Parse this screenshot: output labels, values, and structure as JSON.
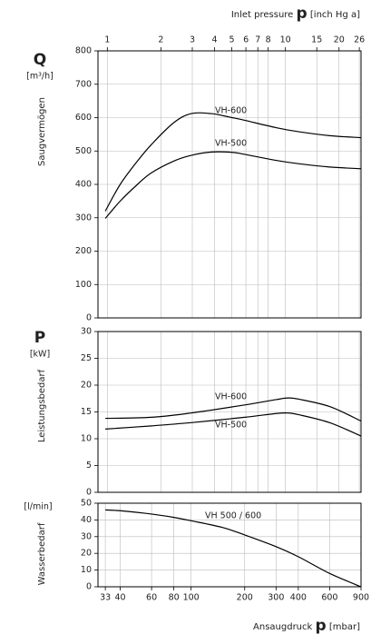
{
  "chart_data": [
    {
      "type": "line",
      "xscale": "log",
      "xlim": [
        30,
        900
      ],
      "x2lim": [
        0.886,
        26.58
      ],
      "x2ticks": [
        1,
        2,
        3,
        4,
        5,
        6,
        7,
        8,
        10,
        15,
        20,
        26
      ],
      "x2label": [
        "Inlet pressure",
        "p",
        "[inch Hg a]"
      ],
      "ylabel": [
        "Q",
        "[m³/h]",
        "Saugvermögen"
      ],
      "ylim": [
        0,
        800
      ],
      "yticks": [
        0,
        100,
        200,
        300,
        400,
        500,
        600,
        700,
        800
      ],
      "grid": true,
      "x": [
        33,
        40,
        50,
        60,
        80,
        100,
        130,
        170,
        200,
        300,
        400,
        600,
        900
      ],
      "series": [
        {
          "name": "VH-600",
          "color": "#000000",
          "values": [
            320,
            400,
            470,
            520,
            585,
            612,
            612,
            600,
            592,
            570,
            558,
            546,
            540
          ]
        },
        {
          "name": "VH-500",
          "color": "#000000",
          "values": [
            298,
            350,
            400,
            435,
            470,
            487,
            497,
            496,
            490,
            472,
            462,
            452,
            447
          ]
        }
      ]
    },
    {
      "type": "line",
      "xscale": "log",
      "xlim": [
        30,
        900
      ],
      "ylabel": [
        "P",
        "[kW]",
        "Leistungsbedarf"
      ],
      "ylim": [
        0,
        30
      ],
      "yticks": [
        0,
        5,
        10,
        15,
        20,
        25,
        30
      ],
      "grid": true,
      "x": [
        33,
        60,
        100,
        200,
        300,
        350,
        400,
        600,
        900
      ],
      "series": [
        {
          "name": "VH-600",
          "color": "#000000",
          "values": [
            13.8,
            14.0,
            14.8,
            16.3,
            17.3,
            17.6,
            17.4,
            16.0,
            13.3
          ]
        },
        {
          "name": "VH-500",
          "color": "#000000",
          "values": [
            11.8,
            12.4,
            13.0,
            14.0,
            14.7,
            14.8,
            14.5,
            13.0,
            10.5
          ]
        }
      ]
    },
    {
      "type": "line",
      "xscale": "log",
      "xlim": [
        30,
        900
      ],
      "xticks": [
        33,
        40,
        60,
        80,
        100,
        200,
        300,
        400,
        600,
        900
      ],
      "xlabel": [
        "Ansaugdruck",
        "p",
        "[mbar]"
      ],
      "ylabel": [
        "[l/min]",
        "Wasserbedarf"
      ],
      "ylim": [
        0,
        50
      ],
      "yticks": [
        0,
        10,
        20,
        30,
        40,
        50
      ],
      "grid": true,
      "x": [
        33,
        40,
        60,
        80,
        100,
        150,
        200,
        300,
        400,
        600,
        900
      ],
      "series": [
        {
          "name": "VH 500 / 600",
          "color": "#000000",
          "values": [
            46,
            45.5,
            43.5,
            41.5,
            39.5,
            35.5,
            31,
            24,
            18,
            8,
            0
          ]
        }
      ]
    }
  ]
}
